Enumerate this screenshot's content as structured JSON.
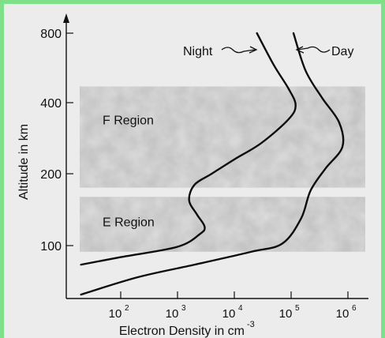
{
  "chart_data": {
    "type": "line",
    "xlabel": "Electron Density in cm",
    "xlabel_sup": "-3",
    "ylabel": "Altitude in km",
    "x_scale": "log",
    "y_scale": "nonlinear",
    "xlim": [
      15,
      1500000
    ],
    "x_ticks": [
      {
        "value": 100,
        "base": "10",
        "exp": "2"
      },
      {
        "value": 1000,
        "base": "10",
        "exp": "3"
      },
      {
        "value": 10000,
        "base": "10",
        "exp": "4"
      },
      {
        "value": 100000,
        "base": "10",
        "exp": "5"
      },
      {
        "value": 1000000,
        "base": "10",
        "exp": "6"
      }
    ],
    "y_ticks": [
      {
        "value": 100,
        "label": "100"
      },
      {
        "value": 200,
        "label": "200"
      },
      {
        "value": 400,
        "label": "400"
      },
      {
        "value": 800,
        "label": "800"
      }
    ],
    "regions": [
      {
        "label": "F Region",
        "alt_range": [
          175,
          470
        ]
      },
      {
        "label": "E Region",
        "alt_range": [
          90,
          160
        ]
      }
    ],
    "series": [
      {
        "name": "Night",
        "points": [
          [
            20,
            72
          ],
          [
            100,
            82
          ],
          [
            1000,
            98
          ],
          [
            2500,
            112
          ],
          [
            3000,
            120
          ],
          [
            2200,
            135
          ],
          [
            1600,
            155
          ],
          [
            2000,
            180
          ],
          [
            4000,
            200
          ],
          [
            10000,
            230
          ],
          [
            30000,
            270
          ],
          [
            90000,
            340
          ],
          [
            120000,
            390
          ],
          [
            90000,
            460
          ],
          [
            50000,
            580
          ],
          [
            25000,
            800
          ]
        ]
      },
      {
        "name": "Day",
        "points": [
          [
            20,
            43
          ],
          [
            200,
            58
          ],
          [
            2000,
            72
          ],
          [
            20000,
            90
          ],
          [
            70000,
            102
          ],
          [
            150000,
            130
          ],
          [
            220000,
            170
          ],
          [
            400000,
            210
          ],
          [
            800000,
            260
          ],
          [
            700000,
            330
          ],
          [
            350000,
            420
          ],
          [
            180000,
            550
          ],
          [
            110000,
            800
          ]
        ]
      }
    ]
  }
}
